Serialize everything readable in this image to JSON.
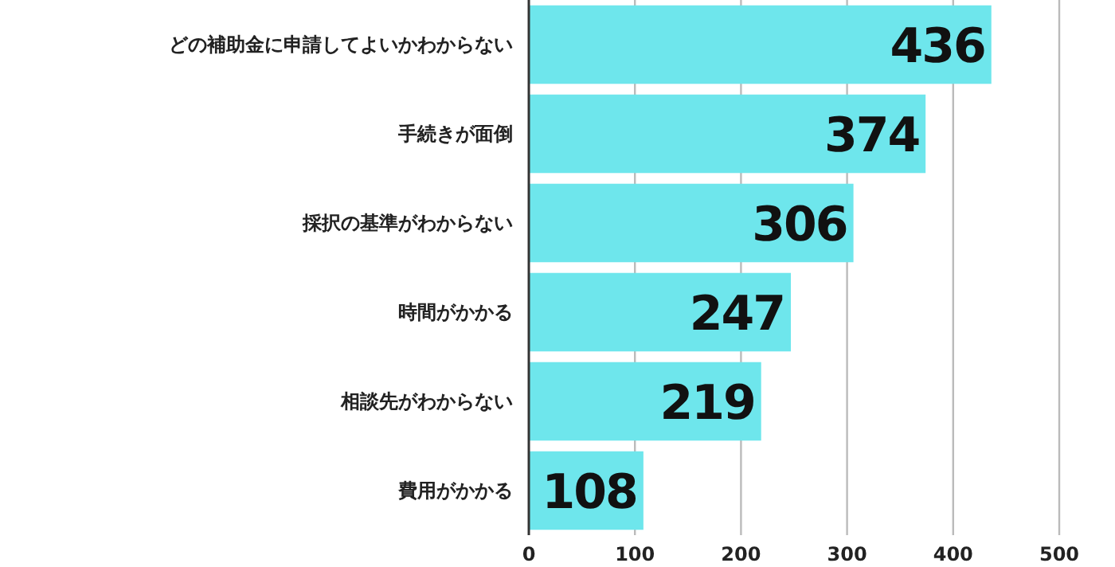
{
  "chart_data": {
    "type": "bar",
    "orientation": "horizontal",
    "categories": [
      "どの補助金に申請してよいかわからない",
      "手続きが面倒",
      "採択の基準がわからない",
      "時間がかかる",
      "相談先がわからない",
      "費用がかかる"
    ],
    "values": [
      436,
      374,
      306,
      247,
      219,
      108
    ],
    "color": "#6ee6ec",
    "data_labels": true,
    "xlim": [
      0,
      500
    ],
    "xticks": [
      0,
      100,
      200,
      300,
      400,
      500
    ],
    "grid": "x"
  }
}
